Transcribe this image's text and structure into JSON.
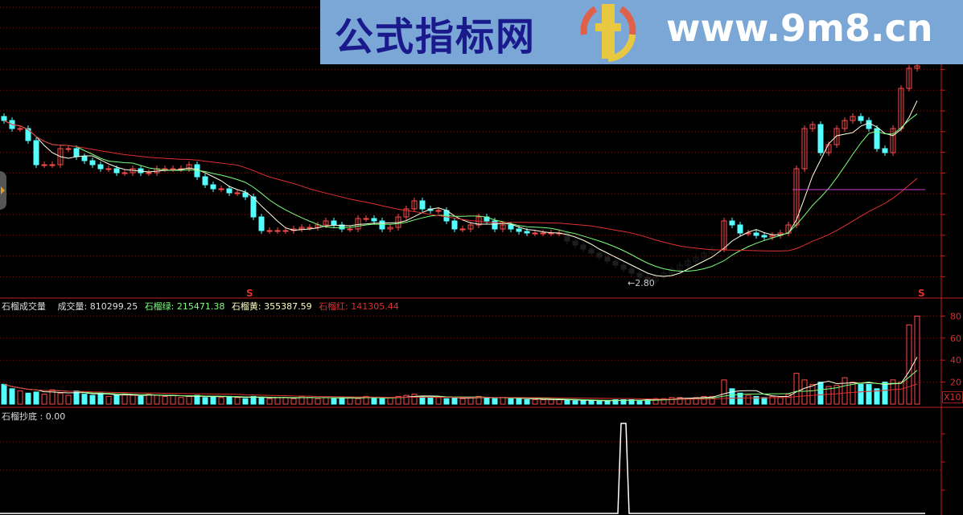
{
  "watermark": {
    "title": "公式指标网",
    "url": "www.9m8.cn",
    "logo_text": "www.9m8.cn"
  },
  "colors": {
    "up": "#ff4a4a",
    "down": "#54ffff",
    "ma_short": "#ffffe0",
    "ma_mid": "#7cff7c",
    "ma_long": "#e03030",
    "hline": "#d040d0",
    "grid": "#7a1010",
    "axis": "#c02020",
    "background": "#000000"
  },
  "chart_data": [
    {
      "type": "candlestick",
      "title": "",
      "low_marker": "←2.80",
      "low_value": 2.8,
      "signal_marker": "S",
      "close": [
        4.82,
        4.72,
        4.72,
        4.57,
        4.27,
        4.27,
        4.27,
        4.47,
        4.47,
        4.37,
        4.32,
        4.27,
        4.22,
        4.22,
        4.17,
        4.17,
        4.22,
        4.17,
        4.17,
        4.22,
        4.22,
        4.22,
        4.22,
        4.27,
        4.12,
        4.02,
        3.97,
        3.97,
        3.92,
        3.92,
        3.87,
        3.62,
        3.45,
        3.45,
        3.45,
        3.45,
        3.47,
        3.49,
        3.49,
        3.52,
        3.57,
        3.52,
        3.47,
        3.47,
        3.6,
        3.6,
        3.57,
        3.47,
        3.49,
        3.62,
        3.72,
        3.82,
        3.72,
        3.7,
        3.7,
        3.57,
        3.47,
        3.47,
        3.52,
        3.62,
        3.57,
        3.47,
        3.52,
        3.47,
        3.44,
        3.42,
        3.42,
        3.42,
        3.42,
        3.42,
        3.32,
        3.27,
        3.22,
        3.17,
        3.12,
        3.07,
        3.02,
        2.97,
        2.92,
        2.87,
        2.82,
        2.87,
        2.92,
        2.97,
        3.02,
        3.07,
        3.12,
        3.17,
        3.22,
        3.57,
        3.52,
        3.42,
        3.42,
        3.39,
        3.37,
        3.39,
        3.42,
        3.52,
        4.22,
        4.72,
        4.77,
        4.42,
        4.52,
        4.72,
        4.82,
        4.87,
        4.82,
        4.72,
        4.47,
        4.42,
        4.72,
        5.22,
        5.47,
        5.5
      ],
      "hline_value": 3.96,
      "series": [
        {
          "type": "ma",
          "period": 5
        },
        {
          "type": "ma",
          "period": 10
        },
        {
          "type": "ma",
          "period": 30
        }
      ]
    },
    {
      "type": "bar",
      "title": "石榴成交量",
      "unit_badge": "X10",
      "yticks": [
        "20",
        "40",
        "60",
        "80"
      ],
      "ylim": [
        0,
        85
      ],
      "values": [
        18,
        14,
        12,
        10,
        11,
        9,
        13,
        10,
        8,
        12,
        9,
        8,
        10,
        7,
        8,
        9,
        8,
        7,
        9,
        8,
        7,
        8,
        6,
        7,
        8,
        6,
        7,
        6,
        7,
        6,
        5,
        7,
        6,
        5,
        6,
        6,
        5,
        7,
        6,
        5,
        6,
        5,
        6,
        6,
        5,
        7,
        6,
        5,
        6,
        7,
        8,
        9,
        7,
        6,
        6,
        5,
        6,
        5,
        6,
        7,
        6,
        5,
        6,
        5,
        5,
        4,
        4,
        4,
        4,
        4,
        4,
        3,
        3,
        3,
        3,
        3,
        4,
        4,
        4,
        3,
        4,
        5,
        5,
        6,
        6,
        5,
        6,
        7,
        7,
        22,
        14,
        10,
        8,
        7,
        6,
        7,
        6,
        9,
        28,
        22,
        18,
        20,
        16,
        17,
        24,
        20,
        18,
        18,
        14,
        20,
        22,
        20,
        72,
        80
      ],
      "series": [
        {
          "name": "成交量",
          "last": "810299.25"
        },
        {
          "name": "石榴绿",
          "last": "215471.38"
        },
        {
          "name": "石榴黄",
          "last": "355387.59"
        },
        {
          "name": "石榴红",
          "last": "141305.44"
        }
      ],
      "legend_label": "成交量: 810299.25",
      "green_label": "石榴绿: 215471.38",
      "yellow_label": "石榴黄: 355387.59",
      "red_label": "石榴红: 141305.44"
    },
    {
      "type": "line",
      "title": "石榴抄底",
      "legend_label": "石榴抄底 : 0.00",
      "signal_index": 77,
      "ylim": [
        0,
        1
      ]
    }
  ]
}
